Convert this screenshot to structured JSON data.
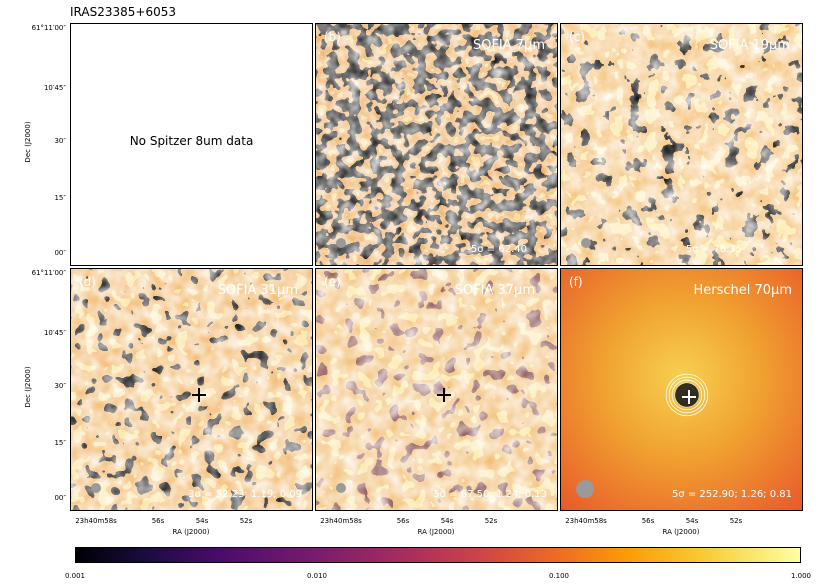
{
  "figure_title": "IRAS23385+6053",
  "panels": [
    {
      "label": "",
      "wavelength": "",
      "sigma": "",
      "note": "No Spitzer 8um data"
    },
    {
      "label": "(b)",
      "wavelength": "SOFIA 7μm",
      "sigma": "5σ = 62.40"
    },
    {
      "label": "(c)",
      "wavelength": "SOFIA 19μm",
      "sigma": "5σ = 76.35"
    },
    {
      "label": "(d)",
      "wavelength": "SOFIA 31μm",
      "sigma": "3σ = 52.23; 1.19; 0.09"
    },
    {
      "label": "(e)",
      "wavelength": "SOFIA 37μm",
      "sigma": "5σ = 67.50; 1.24; 0.13"
    },
    {
      "label": "(f)",
      "wavelength": "Herschel 70μm",
      "sigma": "5σ = 252.90; 1.26; 0.81"
    }
  ],
  "axes": {
    "ylabel": "Dec (J2000)",
    "xlabel": "RA (J2000)",
    "yticks": [
      "61°11′00″",
      "10′45″",
      "30″",
      "15″",
      "00″"
    ],
    "xticks": [
      "23h40m58s",
      "56s",
      "54s",
      "52s"
    ]
  },
  "colorbar": {
    "ticks": [
      "0.001",
      "0.010",
      "0.100",
      "1.000"
    ],
    "colormap": "inferno"
  },
  "colors": {
    "noise_dark": "#000000",
    "noise_orange": "#e07020",
    "noise_yellow": "#f4d060",
    "herschel_bg": "#f0a030"
  }
}
